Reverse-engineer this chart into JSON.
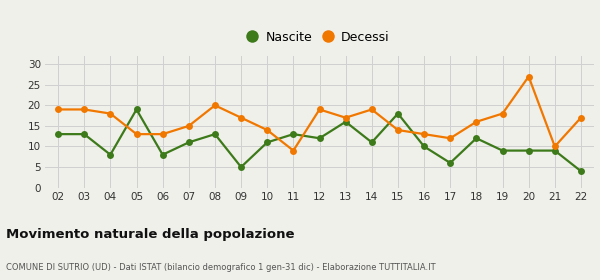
{
  "years": [
    2,
    3,
    4,
    5,
    6,
    7,
    8,
    9,
    10,
    11,
    12,
    13,
    14,
    15,
    16,
    17,
    18,
    19,
    20,
    21,
    22
  ],
  "nascite": [
    13,
    13,
    8,
    19,
    8,
    11,
    13,
    5,
    11,
    13,
    12,
    16,
    11,
    18,
    10,
    6,
    12,
    9,
    9,
    9,
    4
  ],
  "decessi": [
    19,
    19,
    18,
    13,
    13,
    15,
    20,
    17,
    14,
    9,
    19,
    17,
    19,
    14,
    13,
    12,
    16,
    18,
    27,
    10,
    17
  ],
  "nascite_color": "#3d7a1a",
  "decessi_color": "#f07800",
  "background_color": "#f0f0eb",
  "grid_color": "#d0d0d0",
  "title": "Movimento naturale della popolazione",
  "subtitle": "COMUNE DI SUTRIO (UD) - Dati ISTAT (bilancio demografico 1 gen-31 dic) - Elaborazione TUTTITALIA.IT",
  "legend_nascite": "Nascite",
  "legend_decessi": "Decessi",
  "ylim": [
    0,
    32
  ],
  "yticks": [
    0,
    5,
    10,
    15,
    20,
    25,
    30
  ],
  "marker_size": 5,
  "line_width": 1.6
}
